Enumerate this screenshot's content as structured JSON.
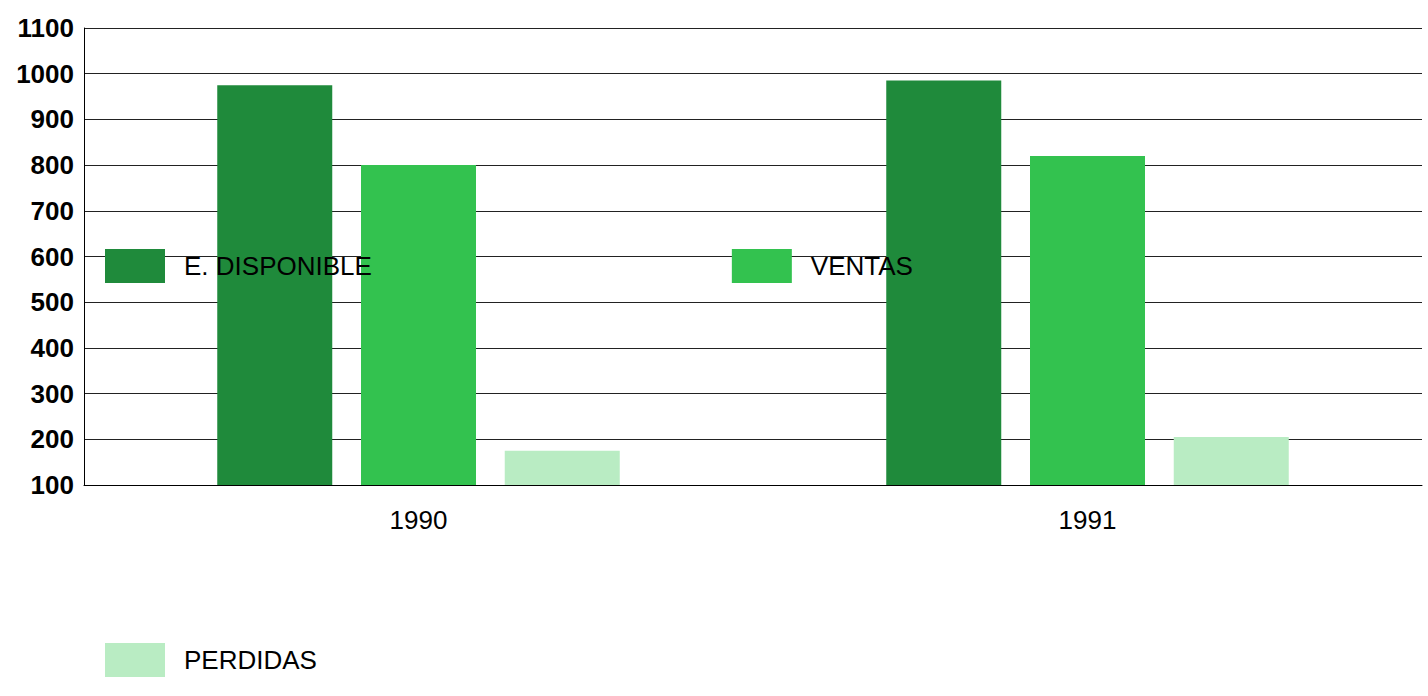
{
  "chart_data": {
    "type": "bar",
    "categories": [
      "1990",
      "1991"
    ],
    "series": [
      {
        "name": "E. DISPONIBLE",
        "color": "#1f8a3b",
        "values": [
          975,
          985
        ]
      },
      {
        "name": "VENTAS",
        "color": "#33c24f",
        "values": [
          800,
          820
        ]
      },
      {
        "name": "PERDIDAS",
        "color": "#b9ecc3",
        "values": [
          175,
          205
        ]
      }
    ],
    "ylim": [
      100,
      1100
    ],
    "yticks": [
      100,
      200,
      300,
      400,
      500,
      600,
      700,
      800,
      900,
      1000,
      1100
    ],
    "grid": true,
    "legend": "bottom"
  }
}
